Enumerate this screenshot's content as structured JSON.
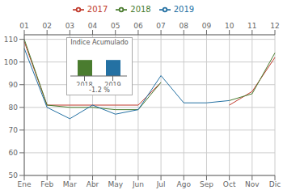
{
  "chart_data": [
    {
      "type": "line",
      "categories": [
        "Ene",
        "Feb",
        "Mar",
        "Abr",
        "May",
        "Jun",
        "Jul",
        "Ago",
        "Sep",
        "Oct",
        "Nov",
        "Dic"
      ],
      "x2_categories": [
        "01",
        "02",
        "03",
        "04",
        "05",
        "06",
        "07",
        "08",
        "09",
        "10",
        "11",
        "12"
      ],
      "series": [
        {
          "name": "2017",
          "color": "#c0392b",
          "values": [
            109,
            81,
            81,
            81,
            81,
            81,
            91,
            null,
            null,
            81,
            87,
            102
          ]
        },
        {
          "name": "2018",
          "color": "#4a7c2f",
          "values": [
            110,
            81,
            80,
            80,
            79,
            79,
            91,
            null,
            null,
            83,
            86,
            104
          ]
        },
        {
          "name": "2019",
          "color": "#2471a3",
          "values": [
            106,
            80,
            75,
            81,
            77,
            79,
            94,
            82,
            82,
            83,
            null,
            null
          ]
        }
      ],
      "ylim": [
        50,
        112
      ],
      "yticks": [
        50,
        60,
        70,
        80,
        90,
        100,
        110
      ],
      "grid": true,
      "legend": "top"
    },
    {
      "type": "bar",
      "title": "Indice Acumulado",
      "categories": [
        "2018",
        "2019"
      ],
      "values": [
        102,
        102
      ],
      "colors": [
        "#4a7c2f",
        "#2471a3"
      ],
      "ylim": [
        95,
        107
      ],
      "tick_labels": "x",
      "annotation": "-1.2 %"
    }
  ]
}
